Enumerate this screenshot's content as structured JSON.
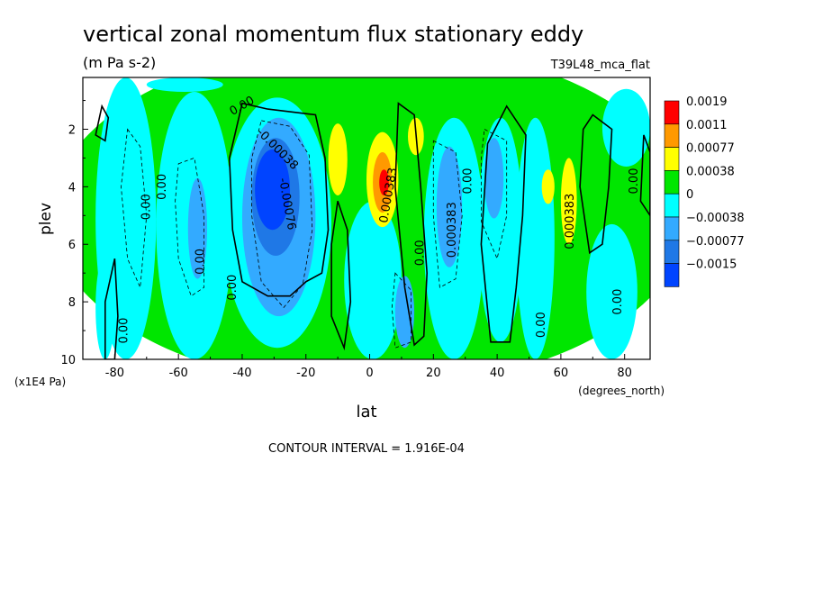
{
  "chart_data": {
    "type": "contour",
    "title": "vertical zonal momentum flux stationary eddy",
    "units": "(m Pa s-2)",
    "dataset": "T39L48_mca_flat",
    "xlabel": "lat",
    "x_units": "(degrees_north)",
    "ylabel": "plev",
    "y_units": "(x1E4 Pa)",
    "xlim": [
      -90,
      88
    ],
    "ylim": [
      10,
      0.2
    ],
    "y_inverted": true,
    "x_ticks": [
      -80,
      -60,
      -40,
      -20,
      0,
      20,
      40,
      60,
      80
    ],
    "x_tick_labels": [
      "-80",
      "-60",
      "-40",
      "-20",
      "0",
      "20",
      "40",
      "60",
      "80"
    ],
    "y_ticks": [
      2,
      4,
      6,
      8,
      10
    ],
    "y_tick_labels": [
      "2",
      "4",
      "6",
      "8",
      "10"
    ],
    "footer": "CONTOUR INTERVAL = 1.916E-04",
    "colorbar": {
      "levels": [
        {
          "label": "0.0019",
          "color": "#ff0000"
        },
        {
          "label": "0.0011",
          "color": "#ff9900"
        },
        {
          "label": "0.00077",
          "color": "#ffff00"
        },
        {
          "label": "0.00038",
          "color": "#00e600"
        },
        {
          "label": "0",
          "color": "#00ffff"
        },
        {
          "label": "−0.00038",
          "color": "#33aaff"
        },
        {
          "label": "−0.00077",
          "color": "#1f78e6"
        },
        {
          "label": "−0.0015",
          "color": "#0044ff"
        }
      ]
    },
    "field_features": [
      {
        "class": 4,
        "lat": [
          -100,
          100
        ],
        "plev": [
          -1,
          11
        ]
      },
      {
        "class": 3,
        "lat": [
          -86,
          -67
        ],
        "plev": [
          0.2,
          10
        ]
      },
      {
        "class": 3,
        "lat": [
          -67,
          -43
        ],
        "plev": [
          0.7,
          10
        ]
      },
      {
        "class": 3,
        "lat": [
          -46,
          -12
        ],
        "plev": [
          0.9,
          9.6
        ]
      },
      {
        "class": 2,
        "lat": [
          -40,
          -17
        ],
        "plev": [
          1.6,
          8.5
        ]
      },
      {
        "class": 1,
        "lat": [
          -37,
          -22
        ],
        "plev": [
          2.3,
          6.4
        ]
      },
      {
        "class": 0,
        "lat": [
          -36,
          -25
        ],
        "plev": [
          2.7,
          5.5
        ]
      },
      {
        "class": 2,
        "lat": [
          -57,
          -51
        ],
        "plev": [
          3.7,
          7.2
        ]
      },
      {
        "class": 3,
        "lat": [
          -86,
          -80
        ],
        "plev": [
          6.4,
          10
        ]
      },
      {
        "class": 3,
        "lat": [
          -8,
          10
        ],
        "plev": [
          4.5,
          10
        ]
      },
      {
        "class": 2,
        "lat": [
          8,
          14
        ],
        "plev": [
          7.1,
          9.6
        ]
      },
      {
        "class": 3,
        "lat": [
          17,
          36
        ],
        "plev": [
          1.6,
          10
        ]
      },
      {
        "class": 2,
        "lat": [
          21,
          29
        ],
        "plev": [
          2.6,
          6.8
        ]
      },
      {
        "class": 3,
        "lat": [
          34,
          48
        ],
        "plev": [
          1.6,
          9.4
        ]
      },
      {
        "class": 2,
        "lat": [
          36,
          42
        ],
        "plev": [
          2.3,
          5.1
        ]
      },
      {
        "class": 3,
        "lat": [
          46,
          58
        ],
        "plev": [
          1.6,
          10
        ]
      },
      {
        "class": 3,
        "lat": [
          68,
          84
        ],
        "plev": [
          5.3,
          10
        ]
      },
      {
        "class": 3,
        "lat": [
          73,
          88
        ],
        "plev": [
          0.6,
          3.3
        ]
      },
      {
        "class": 3,
        "lat": [
          -70,
          -46
        ],
        "plev": [
          0.2,
          0.7
        ]
      },
      {
        "class": 5,
        "lat": [
          -13,
          -7
        ],
        "plev": [
          1.8,
          4.3
        ]
      },
      {
        "class": 5,
        "lat": [
          -1,
          9
        ],
        "plev": [
          2.1,
          5.4
        ]
      },
      {
        "class": 6,
        "lat": [
          1,
          7
        ],
        "plev": [
          2.8,
          4.9
        ]
      },
      {
        "class": 7,
        "lat": [
          3,
          6
        ],
        "plev": [
          3.4,
          4.3
        ]
      },
      {
        "class": 5,
        "lat": [
          12,
          17
        ],
        "plev": [
          1.6,
          2.9
        ]
      },
      {
        "class": 5,
        "lat": [
          60,
          65
        ],
        "plev": [
          3.0,
          6.0
        ]
      },
      {
        "class": 5,
        "lat": [
          54,
          58
        ],
        "plev": [
          3.4,
          4.6
        ]
      }
    ],
    "contour_labels": [
      {
        "text": "0.00",
        "lat": -40,
        "plev": 1.2,
        "angle": -30
      },
      {
        "text": "-0.00038",
        "lat": -29,
        "plev": 2.7,
        "angle": 45
      },
      {
        "text": "-0.00076",
        "lat": -26,
        "plev": 4.6,
        "angle": 80
      },
      {
        "text": "0.00",
        "lat": -70,
        "plev": 4.7,
        "angle": -90
      },
      {
        "text": "0.00",
        "lat": -65,
        "plev": 4.0,
        "angle": -90
      },
      {
        "text": "0.00",
        "lat": -53,
        "plev": 6.6,
        "angle": -90
      },
      {
        "text": "0.00",
        "lat": -43,
        "plev": 7.5,
        "angle": -90
      },
      {
        "text": "0.00",
        "lat": -77,
        "plev": 9.0,
        "angle": -90
      },
      {
        "text": "0.000383",
        "lat": 6,
        "plev": 4.3,
        "angle": -80
      },
      {
        "text": "0.00",
        "lat": 16,
        "plev": 6.3,
        "angle": -90
      },
      {
        "text": "0.000383",
        "lat": 26,
        "plev": 5.5,
        "angle": -90
      },
      {
        "text": "0.00",
        "lat": 31,
        "plev": 3.8,
        "angle": -90
      },
      {
        "text": "0.000383",
        "lat": 63,
        "plev": 5.2,
        "angle": -90
      },
      {
        "text": "0.00",
        "lat": 54,
        "plev": 8.8,
        "angle": -90
      },
      {
        "text": "0.00",
        "lat": 78,
        "plev": 8.0,
        "angle": -90
      },
      {
        "text": "0.00",
        "lat": 83,
        "plev": 3.8,
        "angle": -90
      }
    ],
    "solid_contours": [
      [
        [
          -40,
          1.1
        ],
        [
          -32,
          1.3
        ],
        [
          -17,
          1.5
        ],
        [
          -14,
          3.0
        ],
        [
          -13,
          5.5
        ],
        [
          -15,
          7.0
        ],
        [
          -20,
          7.3
        ],
        [
          -25,
          7.8
        ],
        [
          -32,
          7.8
        ],
        [
          -40,
          7.3
        ],
        [
          -43,
          5.5
        ],
        [
          -44,
          3.0
        ],
        [
          -40,
          1.1
        ]
      ],
      [
        [
          -84,
          1.2
        ],
        [
          -82,
          1.6
        ],
        [
          -83,
          2.4
        ],
        [
          -86,
          2.2
        ],
        [
          -84,
          1.2
        ]
      ],
      [
        [
          -80,
          6.5
        ],
        [
          -79,
          8.5
        ],
        [
          -80,
          10
        ],
        [
          -83,
          10
        ],
        [
          -83,
          8.0
        ],
        [
          -80,
          6.5
        ]
      ],
      [
        [
          9,
          1.1
        ],
        [
          14,
          1.5
        ],
        [
          16,
          4.0
        ],
        [
          18,
          7.0
        ],
        [
          17,
          9.2
        ],
        [
          14,
          9.5
        ],
        [
          11,
          7.5
        ],
        [
          8,
          4.0
        ],
        [
          9,
          1.1
        ]
      ],
      [
        [
          -10,
          4.5
        ],
        [
          -7,
          5.5
        ],
        [
          -6,
          8.0
        ],
        [
          -8,
          9.6
        ],
        [
          -12,
          8.5
        ],
        [
          -12,
          6.0
        ],
        [
          -10,
          4.5
        ]
      ],
      [
        [
          43,
          1.2
        ],
        [
          49,
          2.2
        ],
        [
          48,
          5.0
        ],
        [
          46,
          7.5
        ],
        [
          44,
          9.4
        ],
        [
          38,
          9.4
        ],
        [
          35,
          6.0
        ],
        [
          37,
          2.5
        ],
        [
          43,
          1.2
        ]
      ],
      [
        [
          70,
          1.5
        ],
        [
          76,
          2.0
        ],
        [
          75,
          4.0
        ],
        [
          73,
          6.0
        ],
        [
          69,
          6.3
        ],
        [
          66,
          4.0
        ],
        [
          67,
          2.0
        ],
        [
          70,
          1.5
        ]
      ],
      [
        [
          86,
          2.2
        ],
        [
          88,
          2.8
        ],
        [
          88,
          5.0
        ],
        [
          85,
          4.5
        ],
        [
          86,
          2.2
        ]
      ]
    ],
    "dashed_contours": [
      [
        [
          -34,
          1.7
        ],
        [
          -25,
          1.9
        ],
        [
          -19,
          2.9
        ],
        [
          -18,
          5.5
        ],
        [
          -21,
          7.4
        ],
        [
          -27,
          8.2
        ],
        [
          -34,
          7.3
        ],
        [
          -37,
          5.0
        ],
        [
          -37,
          3.0
        ],
        [
          -34,
          1.7
        ]
      ],
      [
        [
          -60,
          3.2
        ],
        [
          -55,
          3.0
        ],
        [
          -52,
          5.0
        ],
        [
          -52,
          7.5
        ],
        [
          -56,
          7.8
        ],
        [
          -60,
          6.5
        ],
        [
          -61,
          4.5
        ],
        [
          -60,
          3.2
        ]
      ],
      [
        [
          -76,
          2.0
        ],
        [
          -72,
          2.6
        ],
        [
          -70,
          5.0
        ],
        [
          -72,
          7.5
        ],
        [
          -76,
          6.5
        ],
        [
          -78,
          4.0
        ],
        [
          -76,
          2.0
        ]
      ],
      [
        [
          20,
          2.4
        ],
        [
          27,
          2.8
        ],
        [
          29,
          5.0
        ],
        [
          27,
          7.2
        ],
        [
          22,
          7.5
        ],
        [
          20,
          5.0
        ],
        [
          20,
          2.4
        ]
      ],
      [
        [
          36,
          2.0
        ],
        [
          43,
          2.4
        ],
        [
          43,
          5.0
        ],
        [
          40,
          6.5
        ],
        [
          35,
          5.2
        ],
        [
          35,
          3.0
        ],
        [
          36,
          2.0
        ]
      ],
      [
        [
          8,
          7.0
        ],
        [
          13,
          7.6
        ],
        [
          13,
          9.4
        ],
        [
          8,
          9.6
        ],
        [
          7,
          8.2
        ],
        [
          8,
          7.0
        ]
      ]
    ]
  }
}
